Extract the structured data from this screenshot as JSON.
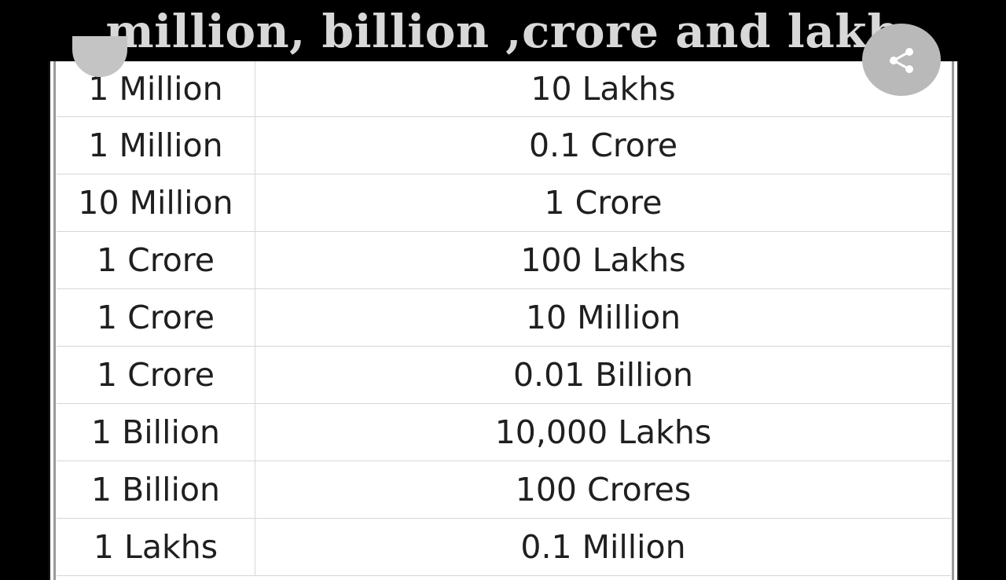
{
  "title": "million, billion ,crore and lakh",
  "rows": [
    {
      "left": "1 Million",
      "right": "10 Lakhs"
    },
    {
      "left": "1 Million",
      "right": "0.1 Crore"
    },
    {
      "left": "10 Million",
      "right": "1 Crore"
    },
    {
      "left": "1 Crore",
      "right": "100 Lakhs"
    },
    {
      "left": "1 Crore",
      "right": "10 Million"
    },
    {
      "left": "1 Crore",
      "right": "0.01 Billion"
    },
    {
      "left": "1 Billion",
      "right": "10,000 Lakhs"
    },
    {
      "left": "1 Billion",
      "right": "100 Crores"
    },
    {
      "left": "1 Lakhs",
      "right": "0.1 Million"
    }
  ],
  "icons": {
    "back": "back-icon",
    "share": "share-icon"
  },
  "colors": {
    "background": "#000000",
    "title": "#d8d8d8",
    "sheet": "#ffffff",
    "text": "#1f1f1f",
    "grid": "#d6d6d6"
  }
}
